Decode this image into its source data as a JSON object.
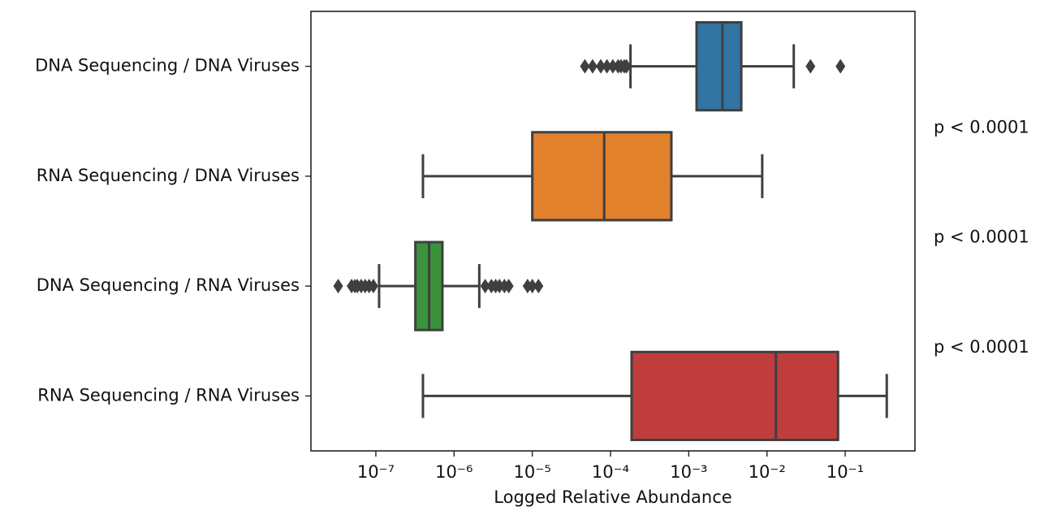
{
  "chart_data": {
    "type": "box",
    "xscale": "log",
    "xlabel": "Logged Relative Abundance",
    "categories": [
      "DNA Sequencing / DNA Viruses",
      "RNA Sequencing / DNA Viruses",
      "DNA Sequencing / RNA Viruses",
      "RNA Sequencing / RNA Viruses"
    ],
    "boxes": [
      {
        "color": "#3274a1",
        "whislo": 0.00018,
        "q1": 0.00126,
        "med": 0.0027,
        "q3": 0.0047,
        "whishi": 0.022,
        "fliers": [
          4.7e-05,
          5.9e-05,
          7.5e-05,
          9e-05,
          0.000107,
          0.000125,
          0.000136,
          0.00015,
          0.00016,
          0.036,
          0.087
        ]
      },
      {
        "color": "#e1812c",
        "whislo": 4e-07,
        "q1": 1e-05,
        "med": 8.3e-05,
        "q3": 0.0006,
        "whishi": 0.0087,
        "fliers": []
      },
      {
        "color": "#3a923a",
        "whislo": 1.1e-07,
        "q1": 3.2e-07,
        "med": 4.8e-07,
        "q3": 7.1e-07,
        "whishi": 2.1e-06,
        "fliers": [
          3.3e-08,
          4.9e-08,
          5.4e-08,
          5.8e-08,
          6.5e-08,
          7.3e-08,
          8.2e-08,
          9.3e-08,
          2.5e-06,
          3e-06,
          3.4e-06,
          3.8e-06,
          4.4e-06,
          5e-06,
          8.7e-06,
          1e-05,
          1.2e-05
        ]
      },
      {
        "color": "#c03d3e",
        "whislo": 4e-07,
        "q1": 0.000186,
        "med": 0.013,
        "q3": 0.081,
        "whishi": 0.34,
        "fliers": []
      }
    ],
    "xlim": [
      1.48e-08,
      0.78
    ],
    "xticks": [
      {
        "value": 1e-07,
        "label": "10⁻⁷"
      },
      {
        "value": 1e-06,
        "label": "10⁻⁶"
      },
      {
        "value": 1e-05,
        "label": "10⁻⁵"
      },
      {
        "value": 0.0001,
        "label": "10⁻⁴"
      },
      {
        "value": 0.001,
        "label": "10⁻³"
      },
      {
        "value": 0.01,
        "label": "10⁻²"
      },
      {
        "value": 0.1,
        "label": "10⁻¹"
      }
    ],
    "annotations": [
      "p < 0.0001",
      "p < 0.0001",
      "p < 0.0001"
    ]
  }
}
